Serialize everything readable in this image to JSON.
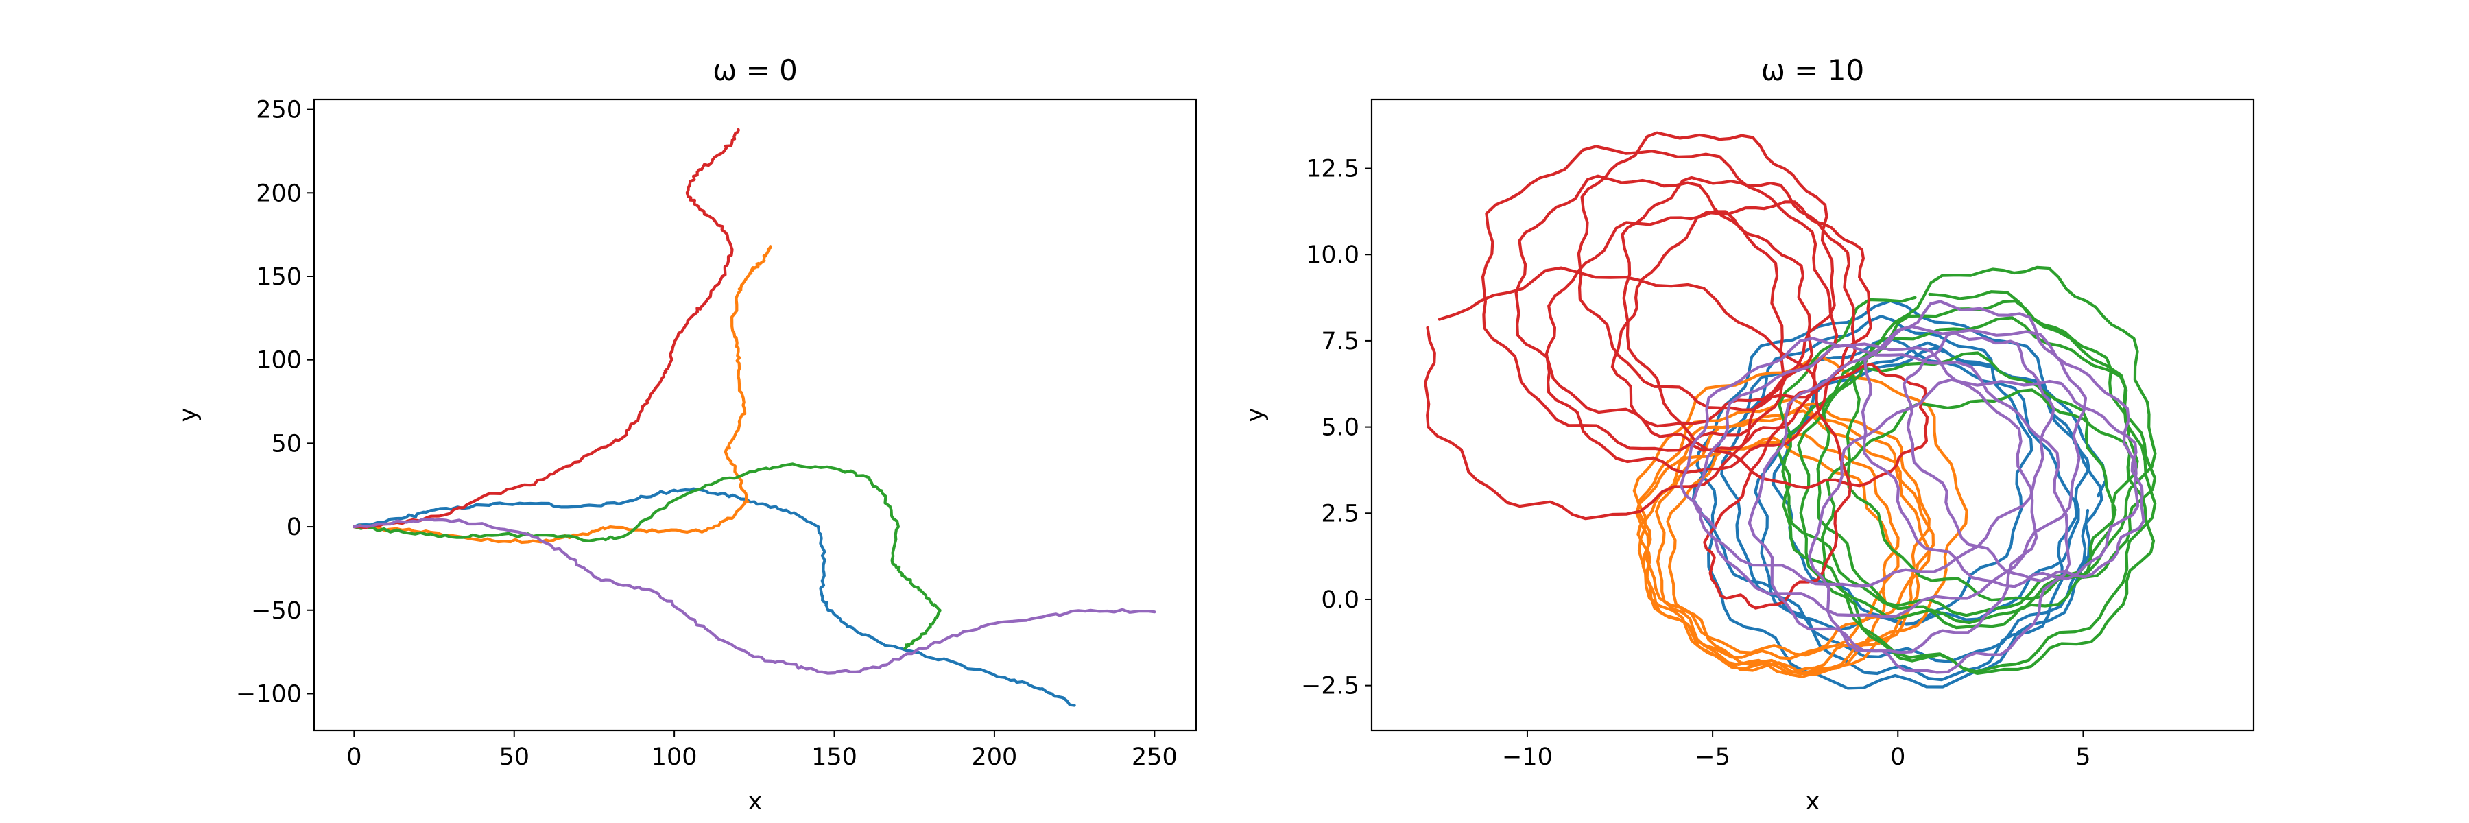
{
  "chart_data": [
    {
      "type": "line",
      "title": "ω = 0",
      "xlabel": "x",
      "ylabel": "y",
      "xlim": [
        -12.5,
        263
      ],
      "ylim": [
        -122,
        256
      ],
      "xticks": [
        0,
        50,
        100,
        150,
        200,
        250
      ],
      "xtick_labels": [
        "0",
        "50",
        "100",
        "150",
        "200",
        "250"
      ],
      "yticks": [
        -100,
        -50,
        0,
        50,
        100,
        150,
        200,
        250
      ],
      "ytick_labels": [
        "−100",
        "−50",
        "0",
        "50",
        "100",
        "150",
        "200",
        "250"
      ],
      "grid": false,
      "series": [
        {
          "color": "#1f77b4",
          "x": [
            0,
            15,
            25,
            40,
            55,
            70,
            85,
            95,
            105,
            115,
            125,
            135,
            145,
            147,
            146,
            148,
            155,
            165,
            175,
            190,
            205,
            215,
            225
          ],
          "y": [
            0,
            5,
            10,
            13,
            14,
            12,
            15,
            20,
            22,
            20,
            15,
            10,
            0,
            -20,
            -40,
            -50,
            -60,
            -70,
            -75,
            -83,
            -92,
            -97,
            -107
          ]
        },
        {
          "color": "#ff7f0e",
          "x": [
            0,
            15,
            30,
            45,
            60,
            70,
            80,
            95,
            110,
            118,
            123,
            120,
            116,
            119,
            122,
            120,
            120,
            118,
            120,
            123,
            125,
            128,
            130
          ],
          "y": [
            0,
            -2,
            -5,
            -9,
            -8,
            -5,
            0,
            -3,
            -2,
            5,
            15,
            30,
            45,
            55,
            70,
            90,
            105,
            120,
            140,
            150,
            155,
            160,
            168
          ]
        },
        {
          "color": "#2ca02c",
          "x": [
            0,
            15,
            30,
            45,
            60,
            75,
            85,
            95,
            110,
            125,
            135,
            150,
            160,
            165,
            170,
            168,
            172,
            178,
            183,
            180,
            175,
            172
          ],
          "y": [
            0,
            -3,
            -6,
            -5,
            -5,
            -8,
            -5,
            10,
            25,
            33,
            37,
            35,
            30,
            20,
            0,
            -20,
            -30,
            -40,
            -50,
            -60,
            -68,
            -73
          ]
        },
        {
          "color": "#d62728",
          "x": [
            0,
            15,
            30,
            40,
            55,
            65,
            75,
            85,
            90,
            95,
            98,
            100,
            105,
            110,
            115,
            118,
            115,
            108,
            104,
            106,
            112,
            118,
            120
          ],
          "y": [
            0,
            2,
            8,
            18,
            25,
            35,
            45,
            55,
            70,
            85,
            95,
            110,
            125,
            135,
            150,
            165,
            180,
            190,
            200,
            210,
            220,
            230,
            238
          ]
        },
        {
          "color": "#9467bd",
          "x": [
            0,
            15,
            25,
            40,
            55,
            65,
            75,
            85,
            95,
            105,
            115,
            125,
            135,
            145,
            155,
            165,
            175,
            185,
            200,
            215,
            230,
            250
          ],
          "y": [
            0,
            3,
            4,
            2,
            -5,
            -15,
            -30,
            -35,
            -40,
            -55,
            -68,
            -78,
            -82,
            -87,
            -87,
            -83,
            -75,
            -67,
            -58,
            -54,
            -50,
            -51
          ]
        }
      ]
    },
    {
      "type": "line",
      "title": "ω = 10",
      "xlabel": "x",
      "ylabel": "y",
      "xlim": [
        -14.2,
        9.6
      ],
      "ylim": [
        -3.8,
        14.5
      ],
      "xticks": [
        -10,
        -5,
        0,
        5
      ],
      "xtick_labels": [
        "−10",
        "−5",
        "0",
        "5"
      ],
      "yticks": [
        -2.5,
        0.0,
        2.5,
        5.0,
        7.5,
        10.0,
        12.5
      ],
      "ytick_labels": [
        "−2.5",
        "0.0",
        "2.5",
        "5.0",
        "7.5",
        "10.0",
        "12.5"
      ],
      "grid": false,
      "series": [
        {
          "color": "#1f77b4",
          "cx": [
            0.0,
            -0.8,
            0.6,
            1.4,
            -0.3
          ],
          "cy": [
            3.0,
            4.0,
            2.5,
            3.5,
            2.0
          ],
          "r": [
            5.4,
            4.2,
            4.7,
            3.6,
            4.9
          ]
        },
        {
          "color": "#ff7f0e",
          "cx": [
            -3.4,
            -2.6,
            -3.9,
            -2.9,
            -3.1,
            -2.5
          ],
          "cy": [
            1.6,
            2.3,
            0.9,
            1.8,
            1.2,
            2.6
          ],
          "r": [
            4.0,
            3.3,
            3.6,
            2.8,
            3.9,
            4.3
          ]
        },
        {
          "color": "#2ca02c",
          "cx": [
            1.6,
            2.2,
            0.9,
            3.2,
            1.8,
            2.6
          ],
          "cy": [
            3.9,
            4.6,
            2.3,
            5.6,
            3.2,
            1.6
          ],
          "r": [
            5.1,
            3.9,
            4.6,
            4.1,
            4.7,
            4.2
          ]
        },
        {
          "color": "#d62728",
          "cx": [
            -8.5,
            -6.4,
            -5.0,
            -3.8,
            -7.1,
            -5.8,
            -4.1,
            -1.2
          ],
          "cy": [
            5.9,
            8.6,
            10.0,
            7.5,
            9.3,
            6.8,
            9.0,
            2.1
          ],
          "r": [
            4.4,
            4.0,
            3.7,
            3.4,
            4.2,
            3.8,
            3.5,
            3.0
          ]
        },
        {
          "color": "#9467bd",
          "cx": [
            -1.2,
            3.4,
            0.6,
            -2.2,
            4.1,
            1.6
          ],
          "cy": [
            3.6,
            4.9,
            2.8,
            3.9,
            4.5,
            1.7
          ],
          "r": [
            4.3,
            3.9,
            4.6,
            3.6,
            3.2,
            4.0
          ]
        }
      ]
    }
  ]
}
